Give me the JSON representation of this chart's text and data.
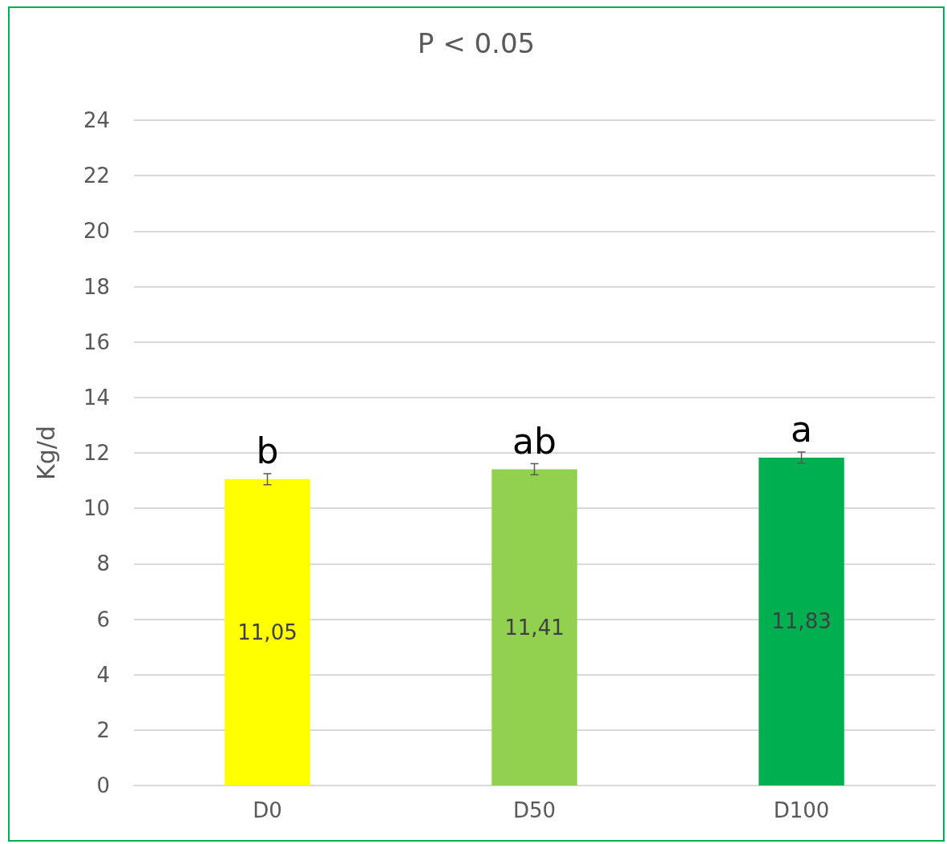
{
  "chart_data": {
    "type": "bar",
    "title": "P < 0.05",
    "ylabel": "Kg/d",
    "categories": [
      "D0",
      "D50",
      "D100"
    ],
    "values": [
      11.05,
      11.41,
      11.83
    ],
    "colors": [
      "#ffff00",
      "#92d050",
      "#00b050"
    ],
    "errors": [
      0.2,
      0.2,
      0.2
    ],
    "value_labels": [
      "11,05",
      "11,41",
      "11,83"
    ],
    "annotations": [
      "b",
      "ab",
      "a"
    ],
    "ylim": [
      0,
      24
    ],
    "yticks": [
      0,
      2,
      4,
      6,
      8,
      10,
      12,
      14,
      16,
      18,
      20,
      22,
      24
    ],
    "grid": "y"
  }
}
